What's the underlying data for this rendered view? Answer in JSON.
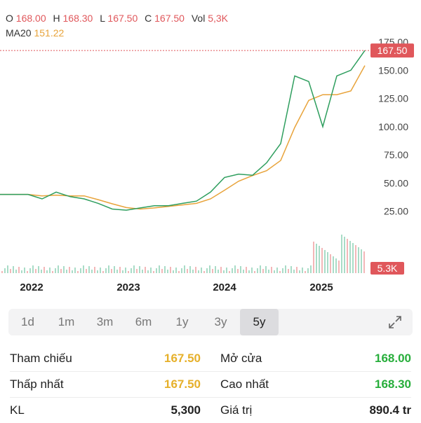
{
  "ohlc": {
    "o_label": "O",
    "o_value": "168.00",
    "h_label": "H",
    "h_value": "168.30",
    "l_label": "L",
    "l_value": "167.50",
    "c_label": "C",
    "c_value": "167.50",
    "vol_label": "Vol",
    "vol_value": "5,3K"
  },
  "ma": {
    "label": "MA20",
    "value": "151.22"
  },
  "chart_data": {
    "type": "line",
    "x": [
      "2021-08",
      "2021-11",
      "2022-01",
      "2022-03",
      "2022-05",
      "2022-07",
      "2022-09",
      "2022-11",
      "2023-01",
      "2023-03",
      "2023-05",
      "2023-07",
      "2023-09",
      "2023-11",
      "2024-01",
      "2024-03",
      "2024-05",
      "2024-07",
      "2024-09",
      "2024-11",
      "2025-01",
      "2025-02",
      "2025-03",
      "2025-04",
      "2025-05",
      "2025-06",
      "2025-07"
    ],
    "series": [
      {
        "values": [
          40,
          40,
          40,
          36,
          42,
          38,
          36,
          32,
          27,
          26,
          28,
          30,
          30,
          32,
          34,
          42,
          55,
          58,
          57,
          68,
          85,
          145,
          140,
          100,
          145,
          150,
          167.5
        ]
      }
    ],
    "ylim": [
      0,
      180
    ],
    "y_ticks": [
      "175.00",
      "150.00",
      "125.00",
      "100.00",
      "75.00",
      "50.00",
      "25.00"
    ],
    "x_ticks": [
      "2022",
      "2023",
      "2024",
      "2025"
    ],
    "last_price_label": "167.50",
    "last_volume_label": "5.3K",
    "line_color": "#2e9e5e",
    "ma_color": "#e8a33a"
  },
  "ranges": {
    "items": [
      "1d",
      "1m",
      "3m",
      "6m",
      "1y",
      "3y",
      "5y"
    ],
    "active": "5y"
  },
  "stats": {
    "tham_chieu_label": "Tham chiếu",
    "tham_chieu_value": "167.50",
    "mo_cua_label": "Mở cửa",
    "mo_cua_value": "168.00",
    "thap_nhat_label": "Thấp nhất",
    "thap_nhat_value": "167.50",
    "cao_nhat_label": "Cao nhất",
    "cao_nhat_value": "168.30",
    "kl_label": "KL",
    "kl_value": "5,300",
    "gia_tri_label": "Giá trị",
    "gia_tri_value": "890.4 tr"
  },
  "colors": {
    "up": "#27ae3b",
    "down": "#e0575b",
    "ref": "#e6b02a"
  }
}
